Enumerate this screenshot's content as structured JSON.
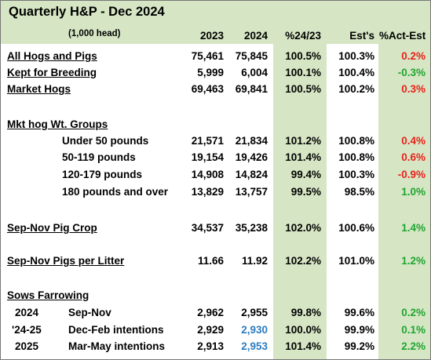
{
  "title": "Quarterly H&P - Dec 2024",
  "subtitle": "(1,000 head)",
  "colors": {
    "band": "#d6e6c4",
    "negative": "#e8211b",
    "positive": "#1fa531",
    "intentions": "#2b7cc0"
  },
  "headers": {
    "y2023": "2023",
    "y2024": "2024",
    "pct": "%24/23",
    "est": "Est's",
    "act": "%Act-Est"
  },
  "rows": [
    {
      "label": "All Hogs and Pigs",
      "v2023": "75,461",
      "v2024": "75,845",
      "pct": "100.5%",
      "est": "100.3%",
      "act": "0.2%",
      "act_sign": "neg"
    },
    {
      "label": "Kept for Breeding",
      "v2023": "5,999",
      "v2024": "6,004",
      "pct": "100.1%",
      "est": "100.4%",
      "act": "-0.3%",
      "act_sign": "pos"
    },
    {
      "label": "Market Hogs",
      "v2023": "69,463",
      "v2024": "69,841",
      "pct": "100.5%",
      "est": "100.2%",
      "act": "0.3%",
      "act_sign": "neg"
    },
    {
      "label": "Mkt hog Wt. Groups"
    },
    {
      "label": "Under 50 pounds",
      "v2023": "21,571",
      "v2024": "21,834",
      "pct": "101.2%",
      "est": "100.8%",
      "act": "0.4%",
      "act_sign": "neg"
    },
    {
      "label": "50-119 pounds",
      "v2023": "19,154",
      "v2024": "19,426",
      "pct": "101.4%",
      "est": "100.8%",
      "act": "0.6%",
      "act_sign": "neg"
    },
    {
      "label": "120-179 pounds",
      "v2023": "14,908",
      "v2024": "14,824",
      "pct": "99.4%",
      "est": "100.3%",
      "act": "-0.9%",
      "act_sign": "neg"
    },
    {
      "label": "180 pounds and over",
      "v2023": "13,829",
      "v2024": "13,757",
      "pct": "99.5%",
      "est": "98.5%",
      "act": "1.0%",
      "act_sign": "pos"
    },
    {
      "label": "Sep-Nov Pig Crop",
      "v2023": "34,537",
      "v2024": "35,238",
      "pct": "102.0%",
      "est": "100.6%",
      "act": "1.4%",
      "act_sign": "pos"
    },
    {
      "label": "Sep-Nov Pigs per Litter",
      "v2023": "11.66",
      "v2024": "11.92",
      "pct": "102.2%",
      "est": "101.0%",
      "act": "1.2%",
      "act_sign": "pos"
    },
    {
      "label": "Sows Farrowing"
    },
    {
      "year": "2024",
      "label": "Sep-Nov",
      "v2023": "2,962",
      "v2024": "2,955",
      "pct": "99.8%",
      "est": "99.6%",
      "act": "0.2%",
      "act_sign": "pos"
    },
    {
      "year": "'24-25",
      "label": "Dec-Feb intentions",
      "v2023": "2,929",
      "v2024": "2,930",
      "pct": "100.0%",
      "est": "99.9%",
      "act": "0.1%",
      "act_sign": "pos"
    },
    {
      "year": "2025",
      "label": "Mar-May intentions",
      "v2023": "2,913",
      "v2024": "2,953",
      "pct": "101.4%",
      "est": "99.2%",
      "act": "2.2%",
      "act_sign": "pos"
    }
  ]
}
